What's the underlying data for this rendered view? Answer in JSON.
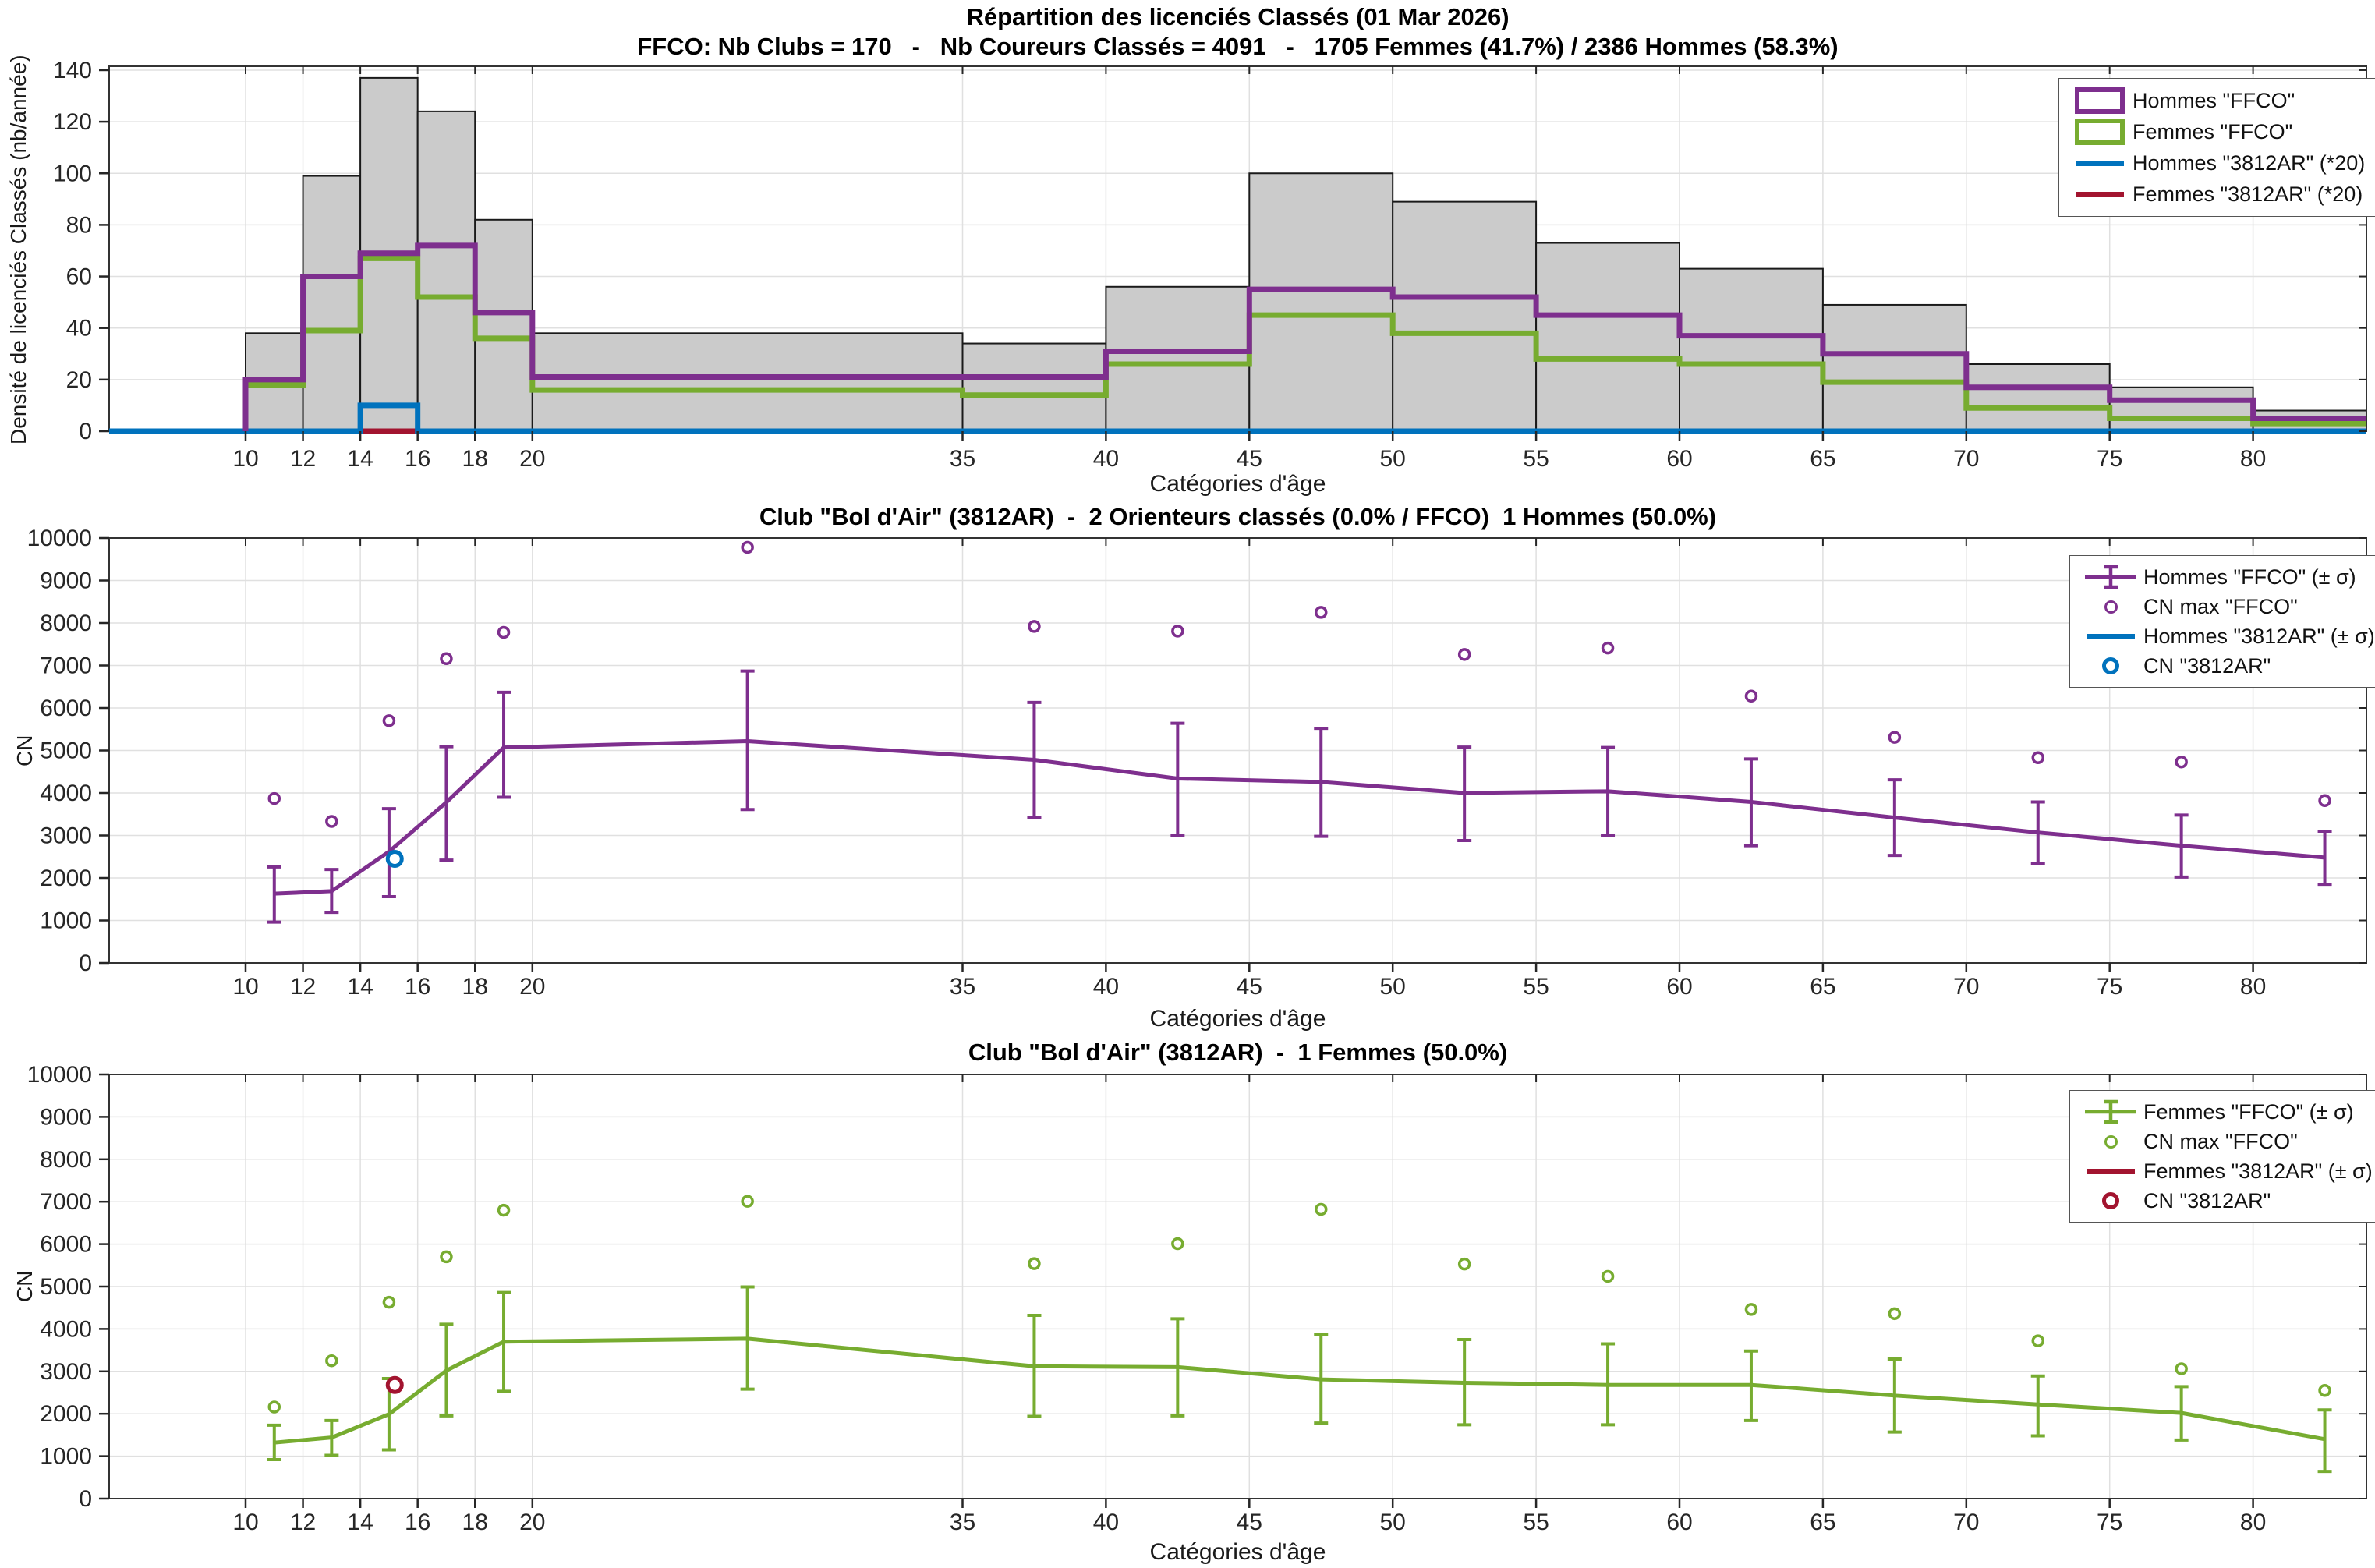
{
  "figure": {
    "bg": "#FFFFFF"
  },
  "colors": {
    "hommes_ffco": "#7E2F8E",
    "femmes_ffco": "#77AC30",
    "hommes_club": "#0072BD",
    "femmes_club": "#A2142F",
    "bar_fill": "#CBCBCB",
    "bar_edge": "#1A1A1A",
    "grid": "#E0E0E0",
    "axis_box": "#333333",
    "tick_text": "#262626"
  },
  "charts": [
    {
      "title": "Répartition des licenciés Classés (01 Mar 2026)",
      "subtitle": "FFCO: Nb Clubs = 170   -   Nb Coureurs Classés = 4091   -   1705 Femmes (41.7%) / 2386 Hommes (58.3%)",
      "xlabel": "Catégories d'âge",
      "ylabel": "Densité de licenciés Classés (nb/année)",
      "legend": [
        {
          "label": "Hommes \"FFCO\"",
          "color": "#7E2F8E",
          "glyph": "rect-swatch"
        },
        {
          "label": "Femmes \"FFCO\"",
          "color": "#77AC30",
          "glyph": "rect-swatch"
        },
        {
          "label": "Hommes \"3812AR\" (*20)",
          "color": "#0072BD",
          "glyph": "line-swatch"
        },
        {
          "label": "Femmes \"3812AR\" (*20)",
          "color": "#A2142F",
          "glyph": "line-swatch"
        }
      ],
      "chart_data": {
        "type": "bar",
        "title": "Répartition des licenciés Classés (01 Mar 2026)",
        "subtitle": "FFCO: Nb Clubs = 170   -   Nb Coureurs Classés = 4091   -   1705 Femmes (41.7%) / 2386 Hommes (58.3%)",
        "xlabel": "Catégories d'âge",
        "ylabel": "Densité de licenciés Classés (nb/année)",
        "xlim": [
          5.2,
          84
        ],
        "ylim": [
          0,
          140
        ],
        "grid": true,
        "legend_position": "top-right",
        "xticks": [
          10,
          12,
          14,
          16,
          18,
          20,
          35,
          40,
          45,
          50,
          55,
          60,
          65,
          70,
          75,
          80
        ],
        "yticks": [
          0,
          20,
          40,
          60,
          80,
          100,
          120,
          140
        ],
        "bin_edges": [
          10,
          12,
          14,
          16,
          18,
          20,
          35,
          40,
          45,
          50,
          55,
          60,
          65,
          70,
          75,
          80,
          85
        ],
        "series": [
          {
            "name": "Total classés FFCO",
            "style": "filled-bar",
            "color": "#CBCBCB",
            "values": [
              38,
              99,
              137,
              124,
              82,
              38,
              34,
              56,
              100,
              89,
              73,
              63,
              49,
              26,
              17,
              8
            ]
          },
          {
            "name": "Hommes \"FFCO\"",
            "style": "stairs",
            "color": "#7E2F8E",
            "values": [
              20,
              60,
              69,
              72,
              46,
              21,
              21,
              31,
              55,
              52,
              45,
              37,
              30,
              17,
              12,
              5
            ]
          },
          {
            "name": "Femmes \"FFCO\"",
            "style": "stairs",
            "color": "#77AC30",
            "values": [
              18,
              39,
              67,
              52,
              36,
              16,
              14,
              26,
              45,
              38,
              28,
              26,
              19,
              9,
              5,
              3
            ]
          },
          {
            "name": "Hommes \"3812AR\" (*20)",
            "style": "stairs",
            "color": "#0072BD",
            "full_width": true,
            "values": [
              0,
              0,
              10,
              0,
              0,
              0,
              0,
              0,
              0,
              0,
              0,
              0,
              0,
              0,
              0,
              0
            ]
          },
          {
            "name": "Femmes \"3812AR\" (*20)",
            "style": "stairs",
            "color": "#A2142F",
            "full_width": true,
            "values": [
              0,
              0,
              0,
              0,
              0,
              0,
              0,
              0,
              0,
              0,
              0,
              0,
              0,
              0,
              0,
              0
            ]
          }
        ]
      }
    },
    {
      "title": "Club \"Bol d'Air\" (3812AR)  -  2 Orienteurs classés (0.0% / FFCO)  1 Hommes (50.0%)",
      "xlabel": "Catégories d'âge",
      "ylabel": "CN",
      "legend": [
        {
          "label": "Hommes \"FFCO\" (± σ)",
          "color": "#7E2F8E",
          "glyph": "errorbar-swatch"
        },
        {
          "label": "CN max \"FFCO\"",
          "color": "#7E2F8E",
          "glyph": "circle-swatch"
        },
        {
          "label": "Hommes \"3812AR\" (± σ)",
          "color": "#0072BD",
          "glyph": "line-swatch"
        },
        {
          "label": "CN \"3812AR\"",
          "color": "#0072BD",
          "glyph": "circle-bold-swatch"
        }
      ],
      "chart_data": {
        "type": "line",
        "title": "Club \"Bol d'Air\" (3812AR)  -  2 Orienteurs classés (0.0% / FFCO)  1 Hommes (50.0%)",
        "xlabel": "Catégories d'âge",
        "ylabel": "CN",
        "xlim": [
          5.2,
          84
        ],
        "ylim": [
          0,
          10000
        ],
        "grid": true,
        "legend_position": "top-right",
        "xticks": [
          10,
          12,
          14,
          16,
          18,
          20,
          35,
          40,
          45,
          50,
          55,
          60,
          65,
          70,
          75,
          80
        ],
        "yticks": [
          0,
          1000,
          2000,
          3000,
          4000,
          5000,
          6000,
          7000,
          8000,
          9000,
          10000
        ],
        "x": [
          11,
          13,
          15,
          17,
          19,
          27.5,
          37.5,
          42.5,
          47.5,
          52.5,
          57.5,
          62.5,
          67.5,
          72.5,
          77.5,
          82.5
        ],
        "series": [
          {
            "name": "Hommes \"FFCO\" (± σ)",
            "style": "errorbar-line",
            "color": "#7E2F8E",
            "mean": [
              1630,
              1690,
              2620,
              3780,
              5070,
              5220,
              4780,
              4340,
              4260,
              4000,
              4040,
              3790,
              3420,
              3070,
              2760,
              2480
            ],
            "upper": [
              2260,
              2200,
              3630,
              5090,
              6370,
              6870,
              6130,
              5640,
              5520,
              5080,
              5070,
              4800,
              4310,
              3790,
              3480,
              3100
            ],
            "lower": [
              960,
              1190,
              1560,
              2420,
              3900,
              3610,
              3430,
              2990,
              2980,
              2880,
              3010,
              2760,
              2530,
              2330,
              2020,
              1850
            ]
          },
          {
            "name": "CN max \"FFCO\"",
            "style": "scatter",
            "color": "#7E2F8E",
            "values": [
              3870,
              3330,
              5700,
              7160,
              7780,
              9780,
              7920,
              7810,
              8250,
              7260,
              7410,
              6280,
              5310,
              4830,
              4730,
              3820
            ]
          }
        ],
        "club_point": {
          "name": "CN \"3812AR\"",
          "color": "#0072BD",
          "x": 15.2,
          "y": 2450
        }
      }
    },
    {
      "title": "Club \"Bol d'Air\" (3812AR)  -  1 Femmes (50.0%)",
      "xlabel": "Catégories d'âge",
      "ylabel": "CN",
      "legend": [
        {
          "label": "Femmes \"FFCO\" (± σ)",
          "color": "#77AC30",
          "glyph": "errorbar-swatch"
        },
        {
          "label": "CN max \"FFCO\"",
          "color": "#77AC30",
          "glyph": "circle-swatch"
        },
        {
          "label": "Femmes \"3812AR\" (± σ)",
          "color": "#A2142F",
          "glyph": "line-swatch"
        },
        {
          "label": "CN \"3812AR\"",
          "color": "#A2142F",
          "glyph": "circle-bold-swatch"
        }
      ],
      "chart_data": {
        "type": "line",
        "title": "Club \"Bol d'Air\" (3812AR)  -  1 Femmes (50.0%)",
        "xlabel": "Catégories d'âge",
        "ylabel": "CN",
        "xlim": [
          5.2,
          84
        ],
        "ylim": [
          0,
          10000
        ],
        "grid": true,
        "legend_position": "top-right",
        "xticks": [
          10,
          12,
          14,
          16,
          18,
          20,
          35,
          40,
          45,
          50,
          55,
          60,
          65,
          70,
          75,
          80
        ],
        "yticks": [
          0,
          1000,
          2000,
          3000,
          4000,
          5000,
          6000,
          7000,
          8000,
          9000,
          10000
        ],
        "x": [
          11,
          13,
          15,
          17,
          19,
          27.5,
          37.5,
          42.5,
          47.5,
          52.5,
          57.5,
          62.5,
          67.5,
          72.5,
          77.5,
          82.5
        ],
        "series": [
          {
            "name": "Femmes \"FFCO\" (± σ)",
            "style": "errorbar-line",
            "color": "#77AC30",
            "mean": [
              1320,
              1440,
              1990,
              3020,
              3700,
              3770,
              3120,
              3100,
              2810,
              2730,
              2680,
              2680,
              2430,
              2220,
              2020,
              1400
            ],
            "upper": [
              1730,
              1840,
              2830,
              4110,
              4860,
              4990,
              4320,
              4240,
              3860,
              3750,
              3650,
              3480,
              3290,
              2890,
              2640,
              2090
            ],
            "lower": [
              920,
              1020,
              1150,
              1950,
              2530,
              2580,
              1940,
              1950,
              1780,
              1740,
              1740,
              1840,
              1570,
              1480,
              1380,
              640
            ]
          },
          {
            "name": "CN max \"FFCO\"",
            "style": "scatter",
            "color": "#77AC30",
            "values": [
              2160,
              3250,
              4630,
              5700,
              6800,
              7010,
              5540,
              6010,
              6820,
              5530,
              5240,
              4460,
              4360,
              3720,
              3060,
              2550
            ]
          }
        ],
        "club_point": {
          "name": "CN \"3812AR\"",
          "color": "#A2142F",
          "x": 15.2,
          "y": 2680
        }
      }
    }
  ]
}
